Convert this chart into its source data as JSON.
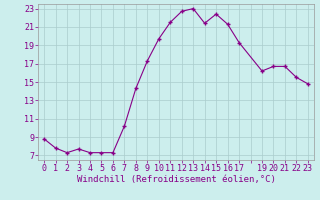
{
  "x": [
    0,
    1,
    2,
    3,
    4,
    5,
    6,
    7,
    8,
    9,
    10,
    11,
    12,
    13,
    14,
    15,
    16,
    17,
    19,
    20,
    21,
    22,
    23
  ],
  "y": [
    8.8,
    7.8,
    7.3,
    7.7,
    7.3,
    7.3,
    7.3,
    10.2,
    14.3,
    17.3,
    19.7,
    21.5,
    22.7,
    23.0,
    21.4,
    22.4,
    21.3,
    19.3,
    16.2,
    16.7,
    16.7,
    15.5,
    14.8
  ],
  "line_color": "#880088",
  "marker": "+",
  "bg_color": "#cceeed",
  "grid_color": "#aacccc",
  "xlabel": "Windchill (Refroidissement éolien,°C)",
  "xlabel_color": "#880088",
  "ylabel_values": [
    7,
    9,
    11,
    13,
    15,
    17,
    19,
    21,
    23
  ],
  "xtick_labels": [
    "0",
    "1",
    "2",
    "3",
    "4",
    "5",
    "6",
    "7",
    "8",
    "9",
    "10",
    "11",
    "12",
    "13",
    "14",
    "15",
    "16",
    "17",
    "",
    "19",
    "20",
    "21",
    "22",
    "23"
  ],
  "all_xticks": [
    0,
    1,
    2,
    3,
    4,
    5,
    6,
    7,
    8,
    9,
    10,
    11,
    12,
    13,
    14,
    15,
    16,
    17,
    18,
    19,
    20,
    21,
    22,
    23
  ],
  "xlim": [
    0,
    23
  ],
  "ylim": [
    6.5,
    23.5
  ],
  "tick_color": "#880088",
  "font_size": 6.0,
  "xlabel_fontsize": 6.5,
  "linewidth": 0.8,
  "markersize": 3.5
}
